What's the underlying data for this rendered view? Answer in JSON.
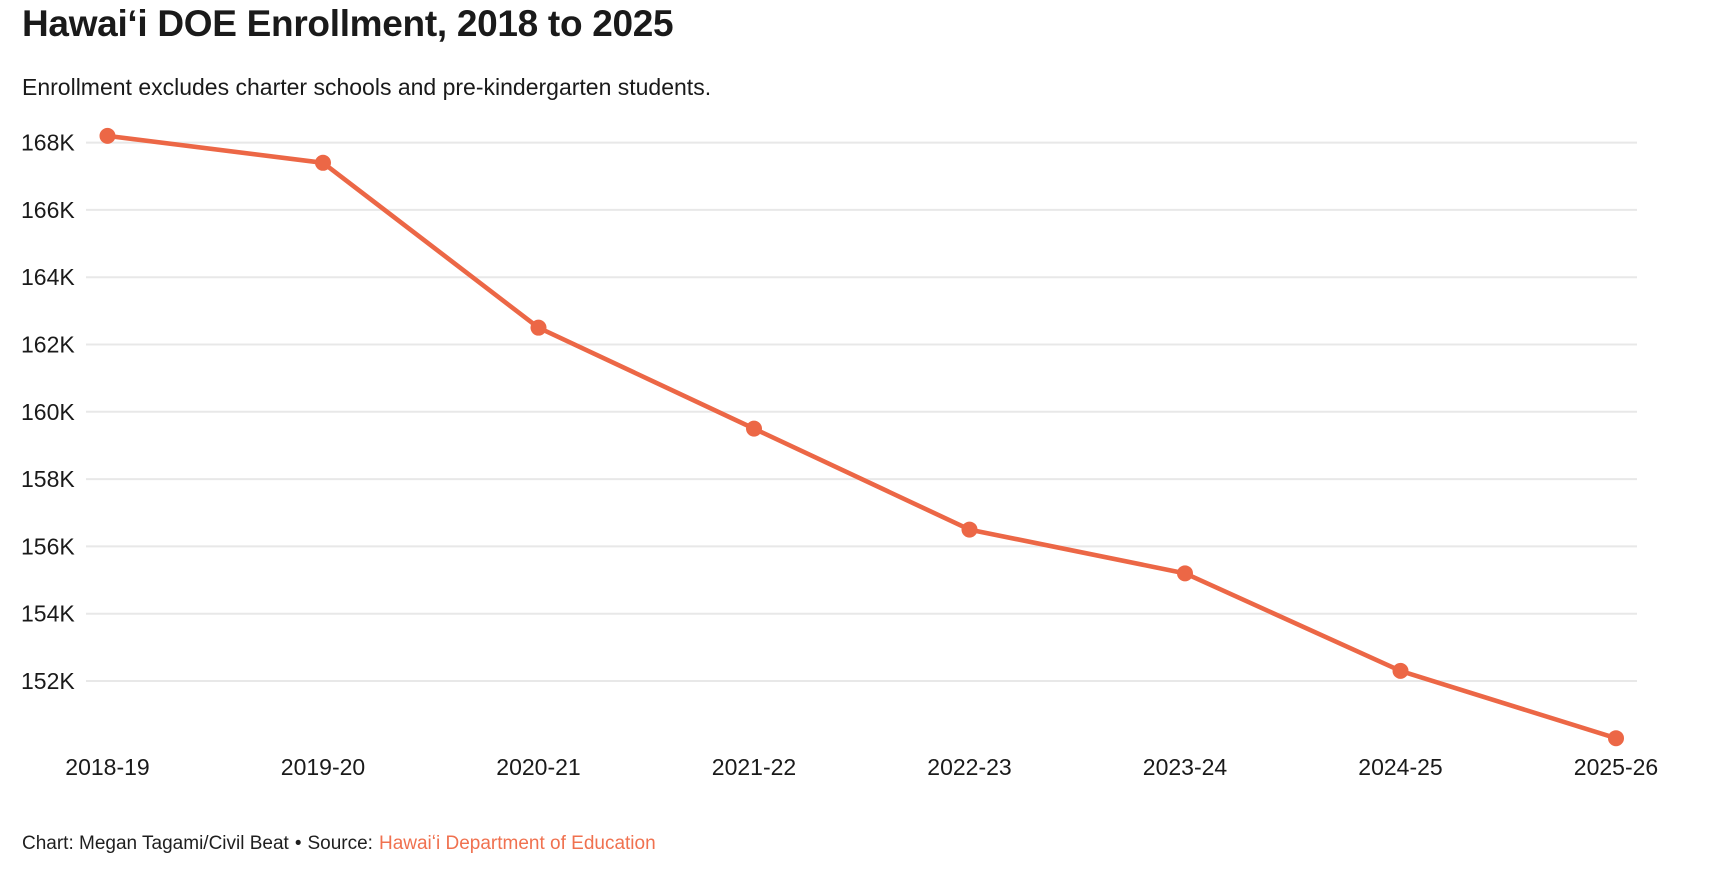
{
  "header": {
    "title": "Hawaiʻi DOE Enrollment, 2018 to 2025",
    "subtitle": "Enrollment excludes charter schools and pre-kindergarten students."
  },
  "chart_data": {
    "type": "line",
    "title": "Hawaiʻi DOE Enrollment, 2018 to 2025",
    "subtitle": "Enrollment excludes charter schools and pre-kindergarten students.",
    "categories": [
      "2018-19",
      "2019-20",
      "2020-21",
      "2021-22",
      "2022-23",
      "2023-24",
      "2024-25",
      "2025-26"
    ],
    "series": [
      {
        "name": "Enrollment",
        "values": [
          168200,
          167400,
          162500,
          159500,
          156500,
          155200,
          152300,
          150300
        ]
      }
    ],
    "xlabel": "",
    "ylabel": "",
    "y_ticks": [
      {
        "value": 168000,
        "label": "168K"
      },
      {
        "value": 166000,
        "label": "166K"
      },
      {
        "value": 164000,
        "label": "164K"
      },
      {
        "value": 162000,
        "label": "162K"
      },
      {
        "value": 160000,
        "label": "160K"
      },
      {
        "value": 158000,
        "label": "158K"
      },
      {
        "value": 156000,
        "label": "156K"
      },
      {
        "value": 154000,
        "label": "154K"
      },
      {
        "value": 152000,
        "label": "152K"
      }
    ],
    "ylim": [
      150000,
      169000
    ],
    "grid": true,
    "legend": "none",
    "marker": "circle"
  },
  "footer": {
    "credit": "Chart: Megan Tagami/Civil Beat",
    "separator": "•",
    "source_label": "Source:",
    "source_link": "Hawaiʻi Department of Education"
  },
  "colors": {
    "accent_line": "#EC6746",
    "source_link": "#F0714F",
    "gridline": "#E8E8E8",
    "text": "#1A1A1A"
  }
}
